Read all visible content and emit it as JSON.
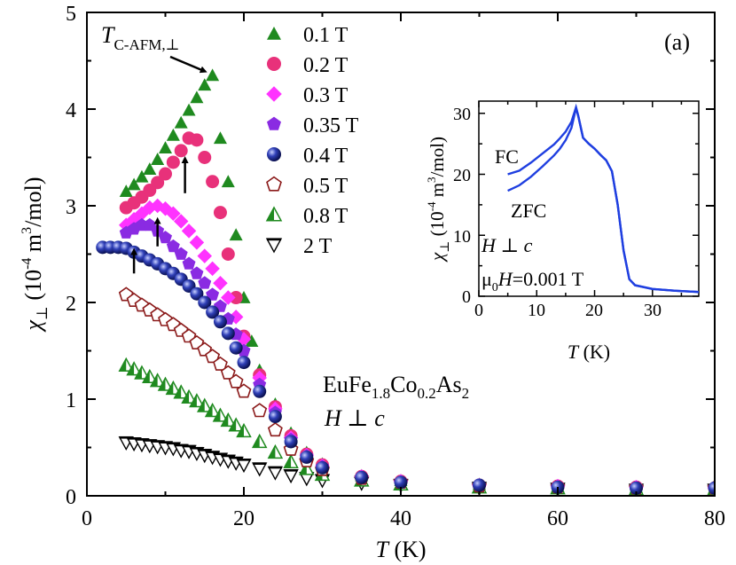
{
  "chart_data": {
    "type": "scatter",
    "panel_label": "(a)",
    "xlabel_var": "T",
    "xlabel_unit": "(K)",
    "ylabel_var": "χ",
    "ylabel_sub": "⊥",
    "ylabel_unit": "(10",
    "ylabel_exp": "-4",
    "ylabel_unit2": " m",
    "ylabel_exp2": "3",
    "ylabel_unit3": "/mol)",
    "xlim": [
      0,
      80
    ],
    "ylim": [
      0,
      5
    ],
    "xticks": [
      "0",
      "20",
      "40",
      "60",
      "80"
    ],
    "yticks": [
      "0",
      "1",
      "2",
      "3",
      "4",
      "5"
    ],
    "annotation_tc": {
      "main": "T",
      "sub": "C-AFM,⊥"
    },
    "compound": {
      "a": "EuFe",
      "b": "1.8",
      "c": "Co",
      "d": "0.2",
      "e": "As",
      "f": "2"
    },
    "field_orientation": "H ⊥ c",
    "series": [
      {
        "name": "0.1 T",
        "marker": "triangle-up",
        "color": "#1f8a1f",
        "filled": true,
        "x": [
          5,
          6,
          7,
          8,
          9,
          10,
          11,
          12,
          13,
          14,
          15,
          16,
          17,
          18,
          19,
          20,
          21,
          22,
          24,
          26,
          28,
          30,
          35,
          40,
          50,
          60,
          70,
          80
        ],
        "y": [
          3.15,
          3.22,
          3.3,
          3.38,
          3.48,
          3.6,
          3.73,
          3.86,
          3.99,
          4.12,
          4.25,
          4.35,
          3.7,
          3.25,
          2.7,
          2.05,
          1.6,
          1.3,
          0.95,
          0.65,
          0.45,
          0.33,
          0.21,
          0.16,
          0.12,
          0.1,
          0.09,
          0.09
        ]
      },
      {
        "name": "0.2 T",
        "marker": "circle",
        "color": "#e8317a",
        "filled": true,
        "x": [
          5,
          6,
          7,
          8,
          9,
          10,
          11,
          12,
          13,
          14,
          15,
          16,
          17,
          18,
          19,
          20,
          22,
          24,
          26,
          28,
          30,
          35,
          40,
          50,
          60,
          70,
          80
        ],
        "y": [
          2.98,
          3.03,
          3.09,
          3.16,
          3.24,
          3.33,
          3.45,
          3.57,
          3.7,
          3.68,
          3.5,
          3.25,
          2.93,
          2.5,
          2.05,
          1.65,
          1.25,
          0.92,
          0.62,
          0.43,
          0.32,
          0.2,
          0.15,
          0.11,
          0.1,
          0.09,
          0.08
        ]
      },
      {
        "name": "0.3 T",
        "marker": "diamond",
        "color": "#ff33ff",
        "filled": true,
        "x": [
          5,
          6,
          7,
          8,
          9,
          10,
          11,
          12,
          13,
          14,
          15,
          16,
          17,
          18,
          19,
          20,
          22,
          24,
          26,
          28,
          30,
          35,
          40,
          50,
          60,
          70,
          80
        ],
        "y": [
          2.8,
          2.86,
          2.92,
          2.98,
          3.0,
          2.97,
          2.92,
          2.84,
          2.74,
          2.62,
          2.48,
          2.35,
          2.2,
          2.05,
          1.85,
          1.62,
          1.22,
          0.9,
          0.6,
          0.42,
          0.31,
          0.2,
          0.15,
          0.11,
          0.1,
          0.09,
          0.08
        ]
      },
      {
        "name": "0.35 T",
        "marker": "pentagon",
        "color": "#8a2be2",
        "filled": true,
        "x": [
          5,
          6,
          7,
          8,
          9,
          10,
          11,
          12,
          13,
          14,
          15,
          16,
          17,
          18,
          19,
          20,
          22,
          24,
          26,
          28,
          30,
          35,
          40,
          50,
          60,
          70,
          80
        ],
        "y": [
          2.72,
          2.76,
          2.8,
          2.8,
          2.74,
          2.67,
          2.58,
          2.5,
          2.4,
          2.3,
          2.2,
          2.08,
          1.96,
          1.83,
          1.67,
          1.5,
          1.15,
          0.86,
          0.58,
          0.41,
          0.3,
          0.19,
          0.14,
          0.11,
          0.09,
          0.08,
          0.08
        ]
      },
      {
        "name": "0.4 T",
        "marker": "sphere",
        "color": "#1a2a9a",
        "filled": true,
        "x": [
          2,
          3,
          4,
          5,
          6,
          7,
          8,
          9,
          10,
          11,
          12,
          13,
          14,
          15,
          16,
          17,
          18,
          19,
          20,
          22,
          24,
          26,
          28,
          30,
          35,
          40,
          50,
          60,
          70,
          80
        ],
        "y": [
          2.57,
          2.57,
          2.57,
          2.56,
          2.52,
          2.48,
          2.44,
          2.4,
          2.35,
          2.3,
          2.24,
          2.17,
          2.09,
          2.0,
          1.9,
          1.8,
          1.68,
          1.53,
          1.38,
          1.08,
          0.82,
          0.56,
          0.4,
          0.29,
          0.19,
          0.14,
          0.11,
          0.09,
          0.08,
          0.08
        ]
      },
      {
        "name": "0.5 T",
        "marker": "pentagon-open",
        "color": "#8b1a1a",
        "filled": false,
        "x": [
          5,
          6,
          7,
          8,
          9,
          10,
          11,
          12,
          13,
          14,
          15,
          16,
          17,
          18,
          19,
          20,
          22,
          24,
          26,
          28,
          30,
          35,
          40,
          50,
          60,
          70,
          80
        ],
        "y": [
          2.08,
          2.02,
          1.97,
          1.92,
          1.87,
          1.82,
          1.77,
          1.71,
          1.65,
          1.58,
          1.51,
          1.44,
          1.36,
          1.27,
          1.18,
          1.08,
          0.88,
          0.68,
          0.48,
          0.36,
          0.27,
          0.18,
          0.14,
          0.1,
          0.09,
          0.08,
          0.08
        ]
      },
      {
        "name": "0.8 T",
        "marker": "triangle-half",
        "color": "#1f8a1f",
        "filled": false,
        "x": [
          5,
          6,
          7,
          8,
          9,
          10,
          11,
          12,
          13,
          14,
          15,
          16,
          17,
          18,
          19,
          20,
          22,
          24,
          26,
          28,
          30,
          35,
          40,
          50,
          60,
          70,
          80
        ],
        "y": [
          1.35,
          1.31,
          1.27,
          1.23,
          1.19,
          1.15,
          1.11,
          1.07,
          1.02,
          0.98,
          0.93,
          0.88,
          0.83,
          0.78,
          0.73,
          0.67,
          0.56,
          0.45,
          0.35,
          0.28,
          0.22,
          0.16,
          0.12,
          0.09,
          0.08,
          0.07,
          0.07
        ]
      },
      {
        "name": "2 T",
        "marker": "triangle-down-open",
        "color": "#000000",
        "filled": false,
        "x": [
          5,
          6,
          7,
          8,
          9,
          10,
          11,
          12,
          13,
          14,
          15,
          16,
          17,
          18,
          19,
          20,
          22,
          24,
          26,
          28,
          30,
          35,
          40,
          50,
          60,
          70,
          80
        ],
        "y": [
          0.55,
          0.54,
          0.53,
          0.52,
          0.51,
          0.5,
          0.49,
          0.47,
          0.46,
          0.44,
          0.42,
          0.4,
          0.38,
          0.36,
          0.34,
          0.32,
          0.28,
          0.24,
          0.21,
          0.18,
          0.16,
          0.13,
          0.11,
          0.08,
          0.07,
          0.06,
          0.06
        ]
      }
    ],
    "arrows_x": [
      6,
      9,
      12.5
    ],
    "arrows_y_from": [
      2.3,
      2.58,
      3.13
    ],
    "arrows_y_to": [
      2.6,
      2.92,
      3.55
    ],
    "inset": {
      "type": "line",
      "xlim": [
        0,
        38
      ],
      "ylim": [
        0,
        32
      ],
      "xticks": [
        "0",
        "10",
        "20",
        "30"
      ],
      "yticks": [
        "0",
        "10",
        "20",
        "30"
      ],
      "xlabel_var": "T",
      "xlabel_unit": "(K)",
      "fc_label": "FC",
      "zfc_label": "ZFC",
      "orientation_label": "H ⊥ c",
      "field_label": {
        "a": "μ",
        "b": "0",
        "c": "H",
        "d": "=0.001 T"
      },
      "color": "#1f3fe0",
      "series": [
        {
          "name": "FC",
          "x": [
            5,
            7,
            9,
            11,
            13,
            14,
            15,
            16,
            16.8,
            17.2,
            18,
            19,
            20,
            21,
            22,
            23,
            24,
            25,
            26,
            27,
            30,
            34,
            38
          ],
          "y": [
            20.0,
            20.6,
            21.9,
            23.4,
            24.9,
            25.9,
            27.0,
            28.6,
            31.0,
            29.5,
            26.0,
            25.0,
            24.2,
            23.2,
            22.3,
            20.5,
            15.0,
            7.5,
            2.8,
            1.8,
            1.2,
            0.9,
            0.7
          ]
        },
        {
          "name": "ZFC",
          "x": [
            5,
            7,
            9,
            11,
            13,
            14,
            15,
            16,
            16.8,
            17.2,
            18,
            19,
            20,
            21,
            22,
            23,
            24,
            25,
            26,
            27,
            30,
            34,
            38
          ],
          "y": [
            17.3,
            18.2,
            19.6,
            21.3,
            23.1,
            24.2,
            25.6,
            27.6,
            30.9,
            29.4,
            26.0,
            25.0,
            24.2,
            23.2,
            22.3,
            20.5,
            15.0,
            7.5,
            2.8,
            1.8,
            1.2,
            0.9,
            0.7
          ]
        }
      ]
    }
  }
}
